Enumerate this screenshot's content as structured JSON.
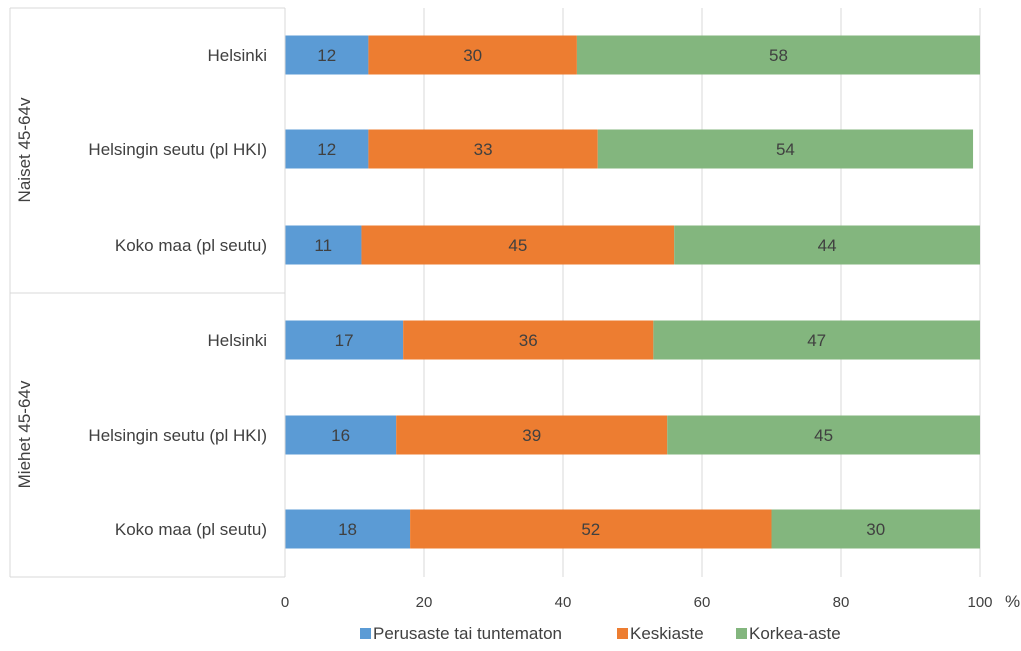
{
  "chart_data": {
    "type": "bar",
    "orientation": "horizontal",
    "stacked": true,
    "title": "",
    "xlabel": "",
    "x_unit": "%",
    "xlim": [
      0,
      100
    ],
    "x_ticks": [
      "0",
      "20",
      "40",
      "60",
      "80",
      "100"
    ],
    "grid": "vertical",
    "legend_position": "bottom",
    "groups": [
      {
        "label": "Naiset  45-64v",
        "categories": [
          "Helsinki",
          "Helsingin seutu (pl HKI)",
          "Koko maa (pl seutu)"
        ]
      },
      {
        "label": "Miehet 45-64v",
        "categories": [
          "Helsinki",
          "Helsingin seutu (pl HKI)",
          "Koko maa (pl seutu)"
        ]
      }
    ],
    "series": [
      {
        "name": "Perusaste tai tuntematon",
        "color": "#5b9bd5",
        "values": [
          12,
          12,
          11,
          17,
          16,
          18
        ]
      },
      {
        "name": "Keskiaste",
        "color": "#ed7d31",
        "values": [
          30,
          33,
          45,
          36,
          39,
          52
        ]
      },
      {
        "name": "Korkea-aste",
        "color": "#83b67e",
        "values": [
          58,
          54,
          44,
          47,
          45,
          30
        ]
      }
    ]
  }
}
